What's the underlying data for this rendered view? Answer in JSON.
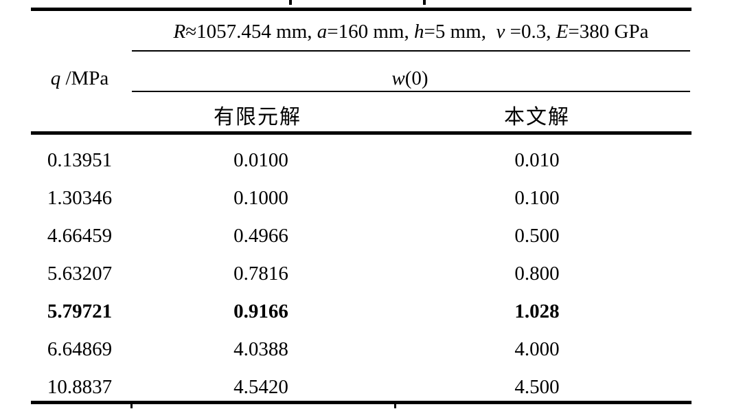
{
  "header": {
    "params_parts": [
      {
        "text": "R",
        "italic": true
      },
      {
        "text": "≈1057.454 mm, ",
        "italic": false
      },
      {
        "text": "a",
        "italic": true
      },
      {
        "text": "=160 mm, ",
        "italic": false
      },
      {
        "text": "h",
        "italic": true
      },
      {
        "text": "=5 mm,  ",
        "italic": false
      },
      {
        "text": "ν",
        "italic": true
      },
      {
        "text": " =0.3, ",
        "italic": false
      },
      {
        "text": "E",
        "italic": true
      },
      {
        "text": "=380 GPa",
        "italic": false
      }
    ],
    "q_label_parts": [
      {
        "text": "q",
        "italic": true
      },
      {
        "text": " /MPa",
        "italic": false
      }
    ],
    "w_label_parts": [
      {
        "text": "w",
        "italic": true
      },
      {
        "text": "(0)",
        "italic": false
      }
    ],
    "fem_label": "有限元解",
    "paper_label": "本文解"
  },
  "table": {
    "rows": [
      {
        "q": "0.13951",
        "fem": "0.0100",
        "paper": "0.010",
        "bold": false
      },
      {
        "q": "1.30346",
        "fem": "0.1000",
        "paper": "0.100",
        "bold": false
      },
      {
        "q": "4.66459",
        "fem": "0.4966",
        "paper": "0.500",
        "bold": false
      },
      {
        "q": "5.63207",
        "fem": "0.7816",
        "paper": "0.800",
        "bold": false
      },
      {
        "q": "5.79721",
        "fem": "0.9166",
        "paper": "1.028",
        "bold": true
      },
      {
        "q": "6.64869",
        "fem": "4.0388",
        "paper": "4.000",
        "bold": false
      },
      {
        "q": "10.8837",
        "fem": "4.5420",
        "paper": "4.500",
        "bold": false
      }
    ]
  },
  "colors": {
    "text": "#000000",
    "background": "#ffffff",
    "rule": "#000000"
  }
}
